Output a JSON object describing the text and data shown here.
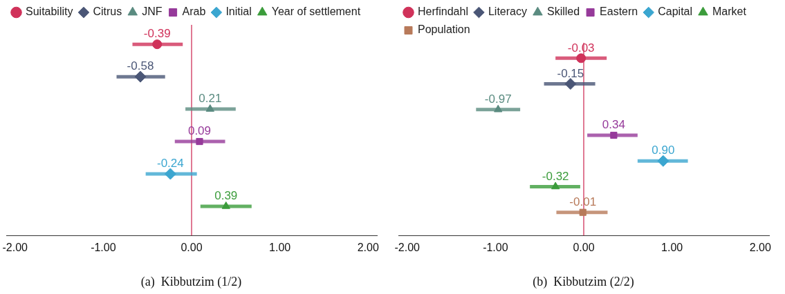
{
  "chart_data": [
    {
      "type": "scatter",
      "orientation": "horizontal",
      "title": "(a)  Kibbutzim (1/2)",
      "categories": [
        null,
        null,
        null,
        null,
        null,
        null
      ],
      "xlim": [
        -2.1,
        2.1
      ],
      "xticks": [
        {
          "value": -2,
          "label": "-2.00"
        },
        {
          "value": -1,
          "label": "-1.00"
        },
        {
          "value": 0,
          "label": "0.00"
        },
        {
          "value": 1,
          "label": "1.00"
        },
        {
          "value": 2,
          "label": "2.00"
        }
      ],
      "tick_labels": "x",
      "grid": false,
      "legend": "top",
      "ref_lines": [
        {
          "axis": "x",
          "value": 0,
          "color": "#d0325a"
        }
      ],
      "series": [
        {
          "name": "Suitability",
          "color": "#d0325a",
          "marker": "circle",
          "values": [
            -0.39,
            null,
            null,
            null,
            null,
            null
          ],
          "errors": [
            [
              -0.67,
              -0.1
            ],
            null,
            null,
            null,
            null,
            null
          ],
          "value_labels": [
            "-0.39",
            null,
            null,
            null,
            null,
            null
          ]
        },
        {
          "name": "Citrus",
          "color": "#4a5676",
          "marker": "diamond",
          "values": [
            null,
            -0.58,
            null,
            null,
            null,
            null
          ],
          "errors": [
            null,
            [
              -0.85,
              -0.3
            ],
            null,
            null,
            null,
            null
          ],
          "value_labels": [
            null,
            "-0.58",
            null,
            null,
            null,
            null
          ]
        },
        {
          "name": "JNF",
          "color": "#5a8b80",
          "marker": "triangle",
          "values": [
            null,
            null,
            0.21,
            null,
            null,
            null
          ],
          "errors": [
            null,
            null,
            [
              -0.07,
              0.5
            ],
            null,
            null,
            null
          ],
          "value_labels": [
            null,
            null,
            "0.21",
            null,
            null,
            null
          ]
        },
        {
          "name": "Arab",
          "color": "#963a9a",
          "marker": "square",
          "values": [
            null,
            null,
            null,
            0.09,
            null,
            null
          ],
          "errors": [
            null,
            null,
            null,
            [
              -0.19,
              0.38
            ],
            null,
            null
          ],
          "value_labels": [
            null,
            null,
            null,
            "0.09",
            null,
            null
          ]
        },
        {
          "name": "Initial",
          "color": "#3ba6d0",
          "marker": "diamond",
          "values": [
            null,
            null,
            null,
            null,
            -0.24,
            null
          ],
          "errors": [
            null,
            null,
            null,
            null,
            [
              -0.52,
              0.06
            ],
            null
          ],
          "value_labels": [
            null,
            null,
            null,
            null,
            "-0.24",
            null
          ]
        },
        {
          "name": "Year of settlement",
          "color": "#3b9c3b",
          "marker": "triangle",
          "values": [
            null,
            null,
            null,
            null,
            null,
            0.39
          ],
          "errors": [
            null,
            null,
            null,
            null,
            null,
            [
              0.1,
              0.68
            ]
          ],
          "value_labels": [
            null,
            null,
            null,
            null,
            null,
            "0.39"
          ]
        }
      ]
    },
    {
      "type": "scatter",
      "orientation": "horizontal",
      "title": "(b)  Kibbutzim (2/2)",
      "categories": [
        null,
        null,
        null,
        null,
        null,
        null,
        null
      ],
      "xlim": [
        -2.1,
        2.1
      ],
      "xticks": [
        {
          "value": -2,
          "label": "-2.00"
        },
        {
          "value": -1,
          "label": "-1.00"
        },
        {
          "value": 0,
          "label": "0.00"
        },
        {
          "value": 1,
          "label": "1.00"
        },
        {
          "value": 2,
          "label": "2.00"
        }
      ],
      "tick_labels": "x",
      "grid": false,
      "legend": "top",
      "ref_lines": [
        {
          "axis": "x",
          "value": 0,
          "color": "#d0325a"
        }
      ],
      "series": [
        {
          "name": "Herfindahl",
          "color": "#d0325a",
          "marker": "circle",
          "values": [
            -0.03,
            null,
            null,
            null,
            null,
            null,
            null
          ],
          "errors": [
            [
              -0.32,
              0.26
            ],
            null,
            null,
            null,
            null,
            null,
            null
          ],
          "value_labels": [
            "-0.03",
            null,
            null,
            null,
            null,
            null,
            null
          ]
        },
        {
          "name": "Literacy",
          "color": "#4a5676",
          "marker": "diamond",
          "values": [
            null,
            -0.15,
            null,
            null,
            null,
            null,
            null
          ],
          "errors": [
            null,
            [
              -0.45,
              0.13
            ],
            null,
            null,
            null,
            null,
            null
          ],
          "value_labels": [
            null,
            "-0.15",
            null,
            null,
            null,
            null,
            null
          ]
        },
        {
          "name": "Skilled",
          "color": "#5a8b80",
          "marker": "triangle",
          "values": [
            null,
            null,
            -0.97,
            null,
            null,
            null,
            null
          ],
          "errors": [
            null,
            null,
            [
              -1.22,
              -0.72
            ],
            null,
            null,
            null,
            null
          ],
          "value_labels": [
            null,
            null,
            "-0.97",
            null,
            null,
            null,
            null
          ]
        },
        {
          "name": "Eastern",
          "color": "#963a9a",
          "marker": "square",
          "values": [
            null,
            null,
            null,
            0.34,
            null,
            null,
            null
          ],
          "errors": [
            null,
            null,
            null,
            [
              0.04,
              0.61
            ],
            null,
            null,
            null
          ],
          "value_labels": [
            null,
            null,
            null,
            "0.34",
            null,
            null,
            null
          ]
        },
        {
          "name": "Capital",
          "color": "#3ba6d0",
          "marker": "diamond",
          "values": [
            null,
            null,
            null,
            null,
            0.9,
            null,
            null
          ],
          "errors": [
            null,
            null,
            null,
            null,
            [
              0.61,
              1.18
            ],
            null,
            null
          ],
          "value_labels": [
            null,
            null,
            null,
            null,
            "0.90",
            null,
            null
          ]
        },
        {
          "name": "Market",
          "color": "#3b9c3b",
          "marker": "triangle",
          "values": [
            null,
            null,
            null,
            null,
            null,
            -0.32,
            null
          ],
          "errors": [
            null,
            null,
            null,
            null,
            null,
            [
              -0.61,
              -0.04
            ],
            null
          ],
          "value_labels": [
            null,
            null,
            null,
            null,
            null,
            "-0.32",
            null
          ]
        },
        {
          "name": "Population",
          "color": "#b87a5a",
          "marker": "square",
          "values": [
            null,
            null,
            null,
            null,
            null,
            null,
            -0.01
          ],
          "errors": [
            null,
            null,
            null,
            null,
            null,
            null,
            [
              -0.31,
              0.27
            ]
          ],
          "value_labels": [
            null,
            null,
            null,
            null,
            null,
            null,
            "-0.01"
          ]
        }
      ]
    }
  ]
}
